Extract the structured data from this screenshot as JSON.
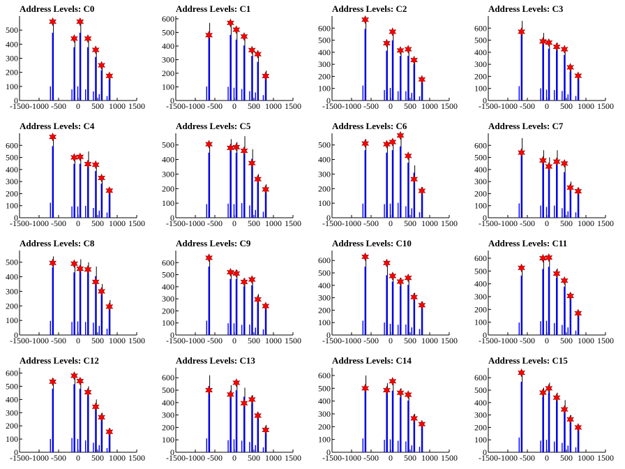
{
  "chart_data": [
    {
      "type": "bar",
      "title": "Address Levels: C0",
      "xlim": [
        -1500,
        1500
      ],
      "ylim": [
        0,
        600
      ],
      "yticks": [
        0,
        100,
        200,
        300,
        400,
        500
      ],
      "xticks": [
        -1500,
        -1000,
        -500,
        0,
        500,
        1000,
        1500
      ],
      "x": [
        -650,
        -100,
        50,
        250,
        450,
        600,
        800
      ],
      "values": [
        560,
        440,
        560,
        440,
        360,
        250,
        175
      ],
      "fit_peaks": [
        {
          "x": -650,
          "y": 560
        },
        {
          "x": -100,
          "y": 440
        },
        {
          "x": 50,
          "y": 560
        },
        {
          "x": 250,
          "y": 440
        },
        {
          "x": 450,
          "y": 360
        },
        {
          "x": 600,
          "y": 250
        },
        {
          "x": 800,
          "y": 175
        }
      ]
    },
    {
      "type": "bar",
      "title": "Address Levels: C1",
      "xlim": [
        -1500,
        1500
      ],
      "ylim": [
        0,
        620
      ],
      "yticks": [
        0,
        100,
        200,
        300,
        400,
        500,
        600
      ],
      "xticks": [
        -1500,
        -1000,
        -500,
        0,
        500,
        1000,
        1500
      ],
      "x": [
        -650,
        -100,
        50,
        250,
        450,
        600,
        800
      ],
      "values": [
        570,
        560,
        520,
        470,
        380,
        330,
        220
      ],
      "fit_peaks": [
        {
          "x": -650,
          "y": 480
        },
        {
          "x": -100,
          "y": 570
        },
        {
          "x": 50,
          "y": 520
        },
        {
          "x": 250,
          "y": 470
        },
        {
          "x": 450,
          "y": 370
        },
        {
          "x": 600,
          "y": 340
        },
        {
          "x": 800,
          "y": 180
        }
      ]
    },
    {
      "type": "bar",
      "title": "Address Levels: C2",
      "xlim": [
        -1500,
        1500
      ],
      "ylim": [
        0,
        700
      ],
      "yticks": [
        0,
        100,
        200,
        300,
        400,
        500,
        600
      ],
      "xticks": [
        -1500,
        -1000,
        -500,
        0,
        500,
        1000,
        1500
      ],
      "x": [
        -650,
        -100,
        50,
        250,
        450,
        600,
        800
      ],
      "values": [
        690,
        480,
        580,
        430,
        430,
        350,
        190
      ],
      "fit_peaks": [
        {
          "x": -650,
          "y": 670
        },
        {
          "x": -100,
          "y": 475
        },
        {
          "x": 50,
          "y": 570
        },
        {
          "x": 250,
          "y": 415
        },
        {
          "x": 450,
          "y": 425
        },
        {
          "x": 600,
          "y": 335
        },
        {
          "x": 800,
          "y": 175
        }
      ]
    },
    {
      "type": "bar",
      "title": "Address Levels: C3",
      "xlim": [
        -1500,
        1500
      ],
      "ylim": [
        0,
        700
      ],
      "yticks": [
        0,
        100,
        200,
        300,
        400,
        500,
        600
      ],
      "xticks": [
        -1500,
        -1000,
        -500,
        0,
        500,
        1000,
        1500
      ],
      "x": [
        -650,
        -100,
        50,
        250,
        450,
        600,
        800
      ],
      "values": [
        660,
        560,
        500,
        480,
        440,
        280,
        210
      ],
      "fit_peaks": [
        {
          "x": -650,
          "y": 570
        },
        {
          "x": -100,
          "y": 490
        },
        {
          "x": 50,
          "y": 480
        },
        {
          "x": 250,
          "y": 445
        },
        {
          "x": 450,
          "y": 425
        },
        {
          "x": 600,
          "y": 275
        },
        {
          "x": 800,
          "y": 205
        }
      ]
    },
    {
      "type": "bar",
      "title": "Address Levels: C4",
      "xlim": [
        -1500,
        1500
      ],
      "ylim": [
        0,
        700
      ],
      "yticks": [
        0,
        100,
        200,
        300,
        400,
        500,
        600
      ],
      "xticks": [
        -1500,
        -1000,
        -500,
        0,
        500,
        1000,
        1500
      ],
      "x": [
        -650,
        -100,
        50,
        250,
        450,
        600,
        800
      ],
      "values": [
        690,
        520,
        520,
        550,
        450,
        330,
        240
      ],
      "fit_peaks": [
        {
          "x": -650,
          "y": 670
        },
        {
          "x": -100,
          "y": 500
        },
        {
          "x": 50,
          "y": 505
        },
        {
          "x": 250,
          "y": 445
        },
        {
          "x": 450,
          "y": 440
        },
        {
          "x": 600,
          "y": 330
        },
        {
          "x": 800,
          "y": 225
        }
      ]
    },
    {
      "type": "bar",
      "title": "Address Levels: C5",
      "xlim": [
        -1500,
        1500
      ],
      "ylim": [
        0,
        580
      ],
      "yticks": [
        0,
        100,
        200,
        300,
        400,
        500
      ],
      "xticks": [
        -1500,
        -1000,
        -500,
        0,
        500,
        1000,
        1500
      ],
      "x": [
        -650,
        -100,
        50,
        250,
        450,
        600,
        800
      ],
      "values": [
        520,
        540,
        520,
        560,
        470,
        300,
        230
      ],
      "fit_peaks": [
        {
          "x": -650,
          "y": 505
        },
        {
          "x": -100,
          "y": 480
        },
        {
          "x": 50,
          "y": 485
        },
        {
          "x": 250,
          "y": 460
        },
        {
          "x": 450,
          "y": 375
        },
        {
          "x": 600,
          "y": 265
        },
        {
          "x": 800,
          "y": 195
        }
      ]
    },
    {
      "type": "bar",
      "title": "Address Levels: C6",
      "xlim": [
        -1500,
        1500
      ],
      "ylim": [
        0,
        580
      ],
      "yticks": [
        0,
        100,
        200,
        300,
        400,
        500
      ],
      "xticks": [
        -1500,
        -1000,
        -500,
        0,
        500,
        1000,
        1500
      ],
      "x": [
        -650,
        -100,
        50,
        250,
        450,
        600,
        800
      ],
      "values": [
        540,
        520,
        540,
        570,
        440,
        360,
        210
      ],
      "fit_peaks": [
        {
          "x": -650,
          "y": 510
        },
        {
          "x": -100,
          "y": 505
        },
        {
          "x": 50,
          "y": 520
        },
        {
          "x": 250,
          "y": 565
        },
        {
          "x": 450,
          "y": 425
        },
        {
          "x": 600,
          "y": 265
        },
        {
          "x": 800,
          "y": 185
        }
      ]
    },
    {
      "type": "bar",
      "title": "Address Levels: C7",
      "xlim": [
        -1500,
        1500
      ],
      "ylim": [
        0,
        700
      ],
      "yticks": [
        0,
        100,
        200,
        300,
        400,
        500,
        600
      ],
      "xticks": [
        -1500,
        -1000,
        -500,
        0,
        500,
        1000,
        1500
      ],
      "x": [
        -650,
        -100,
        50,
        250,
        450,
        600,
        800
      ],
      "values": [
        660,
        560,
        500,
        560,
        440,
        300,
        250
      ],
      "fit_peaks": [
        {
          "x": -650,
          "y": 540
        },
        {
          "x": -100,
          "y": 475
        },
        {
          "x": 50,
          "y": 425
        },
        {
          "x": 250,
          "y": 465
        },
        {
          "x": 450,
          "y": 450
        },
        {
          "x": 600,
          "y": 250
        },
        {
          "x": 800,
          "y": 220
        }
      ]
    },
    {
      "type": "bar",
      "title": "Address Levels: C8",
      "xlim": [
        -1500,
        1500
      ],
      "ylim": [
        0,
        580
      ],
      "yticks": [
        0,
        100,
        200,
        300,
        400,
        500
      ],
      "xticks": [
        -1500,
        -1000,
        -500,
        0,
        500,
        1000,
        1500
      ],
      "x": [
        -650,
        -100,
        50,
        250,
        450,
        600,
        800
      ],
      "values": [
        540,
        500,
        520,
        500,
        470,
        350,
        240
      ],
      "fit_peaks": [
        {
          "x": -650,
          "y": 495
        },
        {
          "x": -100,
          "y": 490
        },
        {
          "x": 50,
          "y": 455
        },
        {
          "x": 250,
          "y": 450
        },
        {
          "x": 450,
          "y": 365
        },
        {
          "x": 600,
          "y": 300
        },
        {
          "x": 800,
          "y": 195
        }
      ]
    },
    {
      "type": "bar",
      "title": "Address Levels: C9",
      "xlim": [
        -1500,
        1500
      ],
      "ylim": [
        0,
        700
      ],
      "yticks": [
        0,
        100,
        200,
        300,
        400,
        500,
        600
      ],
      "xticks": [
        -1500,
        -1000,
        -500,
        0,
        500,
        1000,
        1500
      ],
      "x": [
        -650,
        -100,
        50,
        250,
        450,
        600,
        800
      ],
      "values": [
        660,
        540,
        540,
        470,
        480,
        340,
        260
      ],
      "fit_peaks": [
        {
          "x": -650,
          "y": 640
        },
        {
          "x": -100,
          "y": 520
        },
        {
          "x": 50,
          "y": 510
        },
        {
          "x": 250,
          "y": 440
        },
        {
          "x": 450,
          "y": 460
        },
        {
          "x": 600,
          "y": 295
        },
        {
          "x": 800,
          "y": 240
        }
      ]
    },
    {
      "type": "bar",
      "title": "Address Levels: C10",
      "xlim": [
        -1500,
        1500
      ],
      "ylim": [
        0,
        680
      ],
      "yticks": [
        0,
        100,
        200,
        300,
        400,
        500,
        600
      ],
      "xticks": [
        -1500,
        -1000,
        -500,
        0,
        500,
        1000,
        1500
      ],
      "x": [
        -650,
        -100,
        50,
        250,
        450,
        600,
        800
      ],
      "values": [
        640,
        560,
        500,
        460,
        470,
        340,
        270
      ],
      "fit_peaks": [
        {
          "x": -650,
          "y": 630
        },
        {
          "x": -100,
          "y": 580
        },
        {
          "x": 50,
          "y": 475
        },
        {
          "x": 250,
          "y": 430
        },
        {
          "x": 450,
          "y": 460
        },
        {
          "x": 600,
          "y": 305
        },
        {
          "x": 800,
          "y": 240
        }
      ]
    },
    {
      "type": "bar",
      "title": "Address Levels: C11",
      "xlim": [
        -1500,
        1500
      ],
      "ylim": [
        0,
        660
      ],
      "yticks": [
        0,
        100,
        200,
        300,
        400,
        500,
        600
      ],
      "xticks": [
        -1500,
        -1000,
        -500,
        0,
        500,
        1000,
        1500
      ],
      "x": [
        -650,
        -100,
        50,
        250,
        450,
        600,
        800
      ],
      "values": [
        540,
        600,
        620,
        520,
        440,
        330,
        190
      ],
      "fit_peaks": [
        {
          "x": -650,
          "y": 525
        },
        {
          "x": -100,
          "y": 600
        },
        {
          "x": 50,
          "y": 605
        },
        {
          "x": 250,
          "y": 480
        },
        {
          "x": 450,
          "y": 425
        },
        {
          "x": 600,
          "y": 305
        },
        {
          "x": 800,
          "y": 170
        }
      ]
    },
    {
      "type": "bar",
      "title": "Address Levels: C12",
      "xlim": [
        -1500,
        1500
      ],
      "ylim": [
        0,
        640
      ],
      "yticks": [
        0,
        100,
        200,
        300,
        400,
        500,
        600
      ],
      "xticks": [
        -1500,
        -1000,
        -500,
        0,
        500,
        1000,
        1500
      ],
      "x": [
        -650,
        -100,
        50,
        250,
        450,
        600,
        800
      ],
      "values": [
        560,
        600,
        560,
        500,
        400,
        300,
        180
      ],
      "fit_peaks": [
        {
          "x": -650,
          "y": 535
        },
        {
          "x": -100,
          "y": 580
        },
        {
          "x": 50,
          "y": 540
        },
        {
          "x": 250,
          "y": 455
        },
        {
          "x": 450,
          "y": 345
        },
        {
          "x": 600,
          "y": 265
        },
        {
          "x": 800,
          "y": 155
        }
      ]
    },
    {
      "type": "bar",
      "title": "Address Levels: C13",
      "xlim": [
        -1500,
        1500
      ],
      "ylim": [
        0,
        680
      ],
      "yticks": [
        0,
        100,
        200,
        300,
        400,
        500,
        600
      ],
      "xticks": [
        -1500,
        -1000,
        -500,
        0,
        500,
        1000,
        1500
      ],
      "x": [
        -650,
        -100,
        50,
        250,
        450,
        600,
        800
      ],
      "values": [
        620,
        540,
        580,
        520,
        460,
        320,
        220
      ],
      "fit_peaks": [
        {
          "x": -650,
          "y": 500
        },
        {
          "x": -100,
          "y": 465
        },
        {
          "x": 50,
          "y": 560
        },
        {
          "x": 250,
          "y": 395
        },
        {
          "x": 450,
          "y": 425
        },
        {
          "x": 600,
          "y": 295
        },
        {
          "x": 800,
          "y": 180
        }
      ]
    },
    {
      "type": "bar",
      "title": "Address Levels: C14",
      "xlim": [
        -1500,
        1500
      ],
      "ylim": [
        0,
        660
      ],
      "yticks": [
        0,
        100,
        200,
        300,
        400,
        500,
        600
      ],
      "xticks": [
        -1500,
        -1000,
        -500,
        0,
        500,
        1000,
        1500
      ],
      "x": [
        -650,
        -100,
        50,
        250,
        450,
        600,
        800
      ],
      "values": [
        600,
        540,
        560,
        500,
        470,
        300,
        240
      ],
      "fit_peaks": [
        {
          "x": -650,
          "y": 500
        },
        {
          "x": -100,
          "y": 485
        },
        {
          "x": 50,
          "y": 555
        },
        {
          "x": 250,
          "y": 465
        },
        {
          "x": 450,
          "y": 450
        },
        {
          "x": 600,
          "y": 265
        },
        {
          "x": 800,
          "y": 220
        }
      ]
    },
    {
      "type": "bar",
      "title": "Address Levels: C15",
      "xlim": [
        -1500,
        1500
      ],
      "ylim": [
        0,
        680
      ],
      "yticks": [
        0,
        100,
        200,
        300,
        400,
        500,
        600
      ],
      "xticks": [
        -1500,
        -1000,
        -500,
        0,
        500,
        1000,
        1500
      ],
      "x": [
        -650,
        -100,
        50,
        250,
        450,
        600,
        800
      ],
      "values": [
        660,
        520,
        560,
        480,
        420,
        300,
        220
      ],
      "fit_peaks": [
        {
          "x": -650,
          "y": 640
        },
        {
          "x": -100,
          "y": 480
        },
        {
          "x": 50,
          "y": 515
        },
        {
          "x": 250,
          "y": 440
        },
        {
          "x": 450,
          "y": 345
        },
        {
          "x": 600,
          "y": 265
        },
        {
          "x": 800,
          "y": 200
        }
      ]
    }
  ],
  "colors": {
    "histogram_line": "#000000",
    "bar_fill": "#0000ff",
    "fit_marker": "#ff0000",
    "fit_marker_edge": "#8b0000"
  }
}
